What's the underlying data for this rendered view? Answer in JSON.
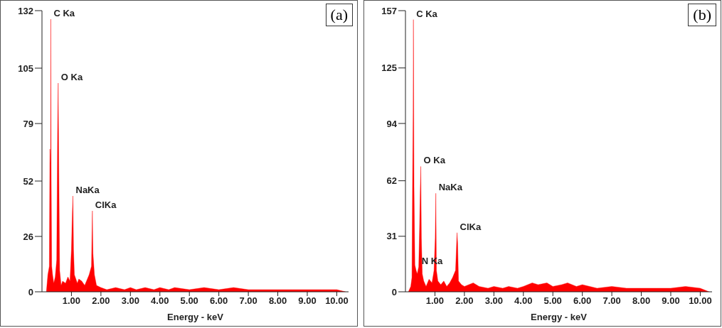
{
  "chart_data": [
    {
      "type": "area",
      "title": "(a)",
      "xlabel": "Energy - keV",
      "xlim": [
        0,
        10.4
      ],
      "ylim": [
        0,
        132
      ],
      "grid": false,
      "legend": false,
      "xticks": [
        {
          "value": 1,
          "label": "1.00"
        },
        {
          "value": 2,
          "label": "2.00"
        },
        {
          "value": 3,
          "label": "3.00"
        },
        {
          "value": 4,
          "label": "4.00"
        },
        {
          "value": 5,
          "label": "5.00"
        },
        {
          "value": 6,
          "label": "6.00"
        },
        {
          "value": 7,
          "label": "7.00"
        },
        {
          "value": 8,
          "label": "8.00"
        },
        {
          "value": 9,
          "label": "9.00"
        },
        {
          "value": 10,
          "label": "10.00"
        }
      ],
      "yticks": [
        0,
        26,
        52,
        79,
        105,
        132
      ],
      "annotations": [
        {
          "text": "C Ka",
          "x": 0.3,
          "y": 128
        },
        {
          "text": "O Ka",
          "x": 0.55,
          "y": 98
        },
        {
          "text": "NaKa",
          "x": 1.05,
          "y": 45
        },
        {
          "text": "ClKa",
          "x": 1.71,
          "y": 38
        }
      ],
      "series": [
        {
          "color": "#ff0000",
          "x": [
            0.15,
            0.2,
            0.25,
            0.27,
            0.29,
            0.3,
            0.31,
            0.33,
            0.36,
            0.4,
            0.45,
            0.5,
            0.53,
            0.55,
            0.57,
            0.6,
            0.65,
            0.7,
            0.8,
            0.88,
            0.95,
            1.0,
            1.03,
            1.05,
            1.07,
            1.1,
            1.2,
            1.25,
            1.35,
            1.45,
            1.6,
            1.68,
            1.71,
            1.73,
            1.78,
            1.85,
            2.0,
            2.2,
            2.5,
            2.8,
            3.0,
            3.2,
            3.5,
            3.8,
            4.0,
            4.3,
            4.5,
            5.0,
            5.5,
            6.0,
            6.5,
            7.0,
            7.5,
            8.0,
            8.5,
            9.0,
            9.5,
            10.0,
            10.3
          ],
          "values": [
            0,
            8,
            12,
            67,
            60,
            128,
            60,
            12,
            8,
            4,
            7,
            15,
            74,
            98,
            60,
            10,
            3,
            5,
            4,
            7,
            5,
            20,
            37,
            45,
            20,
            8,
            4,
            6,
            5,
            3,
            8,
            12,
            38,
            18,
            8,
            3,
            2,
            1,
            2,
            1,
            2,
            1,
            2,
            1,
            2,
            1,
            2,
            1,
            2,
            1,
            2,
            1,
            1,
            1,
            1,
            1,
            1,
            1,
            0
          ]
        }
      ]
    },
    {
      "type": "area",
      "title": "(b)",
      "xlabel": "Energy - keV",
      "xlim": [
        0,
        10.4
      ],
      "ylim": [
        0,
        157
      ],
      "grid": false,
      "legend": false,
      "xticks": [
        {
          "value": 1,
          "label": "1.00"
        },
        {
          "value": 2,
          "label": "2.00"
        },
        {
          "value": 3,
          "label": "3.00"
        },
        {
          "value": 4,
          "label": "4.00"
        },
        {
          "value": 5,
          "label": "5.00"
        },
        {
          "value": 6,
          "label": "6.00"
        },
        {
          "value": 7,
          "label": "7.00"
        },
        {
          "value": 8,
          "label": "8.00"
        },
        {
          "value": 9,
          "label": "9.00"
        },
        {
          "value": 10,
          "label": "10.00"
        }
      ],
      "yticks": [
        0,
        31,
        62,
        94,
        125,
        157
      ],
      "annotations": [
        {
          "text": "C Ka",
          "x": 0.27,
          "y": 152
        },
        {
          "text": "O Ka",
          "x": 0.52,
          "y": 70
        },
        {
          "text": "NaKa",
          "x": 1.03,
          "y": 55
        },
        {
          "text": "ClKa",
          "x": 1.75,
          "y": 33
        },
        {
          "text": "N Ka",
          "x": 0.45,
          "y": 14
        }
      ],
      "series": [
        {
          "color": "#ff0000",
          "x": [
            0.1,
            0.18,
            0.22,
            0.24,
            0.26,
            0.27,
            0.29,
            0.32,
            0.36,
            0.4,
            0.45,
            0.48,
            0.5,
            0.52,
            0.54,
            0.57,
            0.62,
            0.7,
            0.8,
            0.9,
            0.97,
            1.01,
            1.03,
            1.05,
            1.1,
            1.2,
            1.3,
            1.4,
            1.5,
            1.6,
            1.7,
            1.75,
            1.77,
            1.8,
            1.9,
            2.0,
            2.3,
            2.5,
            2.8,
            3.0,
            3.3,
            3.5,
            3.8,
            4.0,
            4.3,
            4.5,
            4.8,
            5.0,
            5.3,
            5.5,
            5.8,
            6.0,
            6.5,
            7.0,
            7.5,
            8.0,
            8.5,
            9.0,
            9.5,
            10.0,
            10.3
          ],
          "values": [
            0,
            3,
            8,
            59,
            100,
            152,
            59,
            15,
            12,
            10,
            14,
            36,
            55,
            70,
            30,
            10,
            6,
            3,
            7,
            5,
            12,
            30,
            55,
            12,
            6,
            4,
            6,
            3,
            5,
            8,
            12,
            33,
            27,
            6,
            4,
            3,
            5,
            3,
            2,
            3,
            2,
            3,
            2,
            3,
            5,
            4,
            5,
            3,
            4,
            5,
            3,
            4,
            2,
            3,
            2,
            2,
            2,
            2,
            3,
            2,
            0
          ]
        }
      ]
    }
  ]
}
